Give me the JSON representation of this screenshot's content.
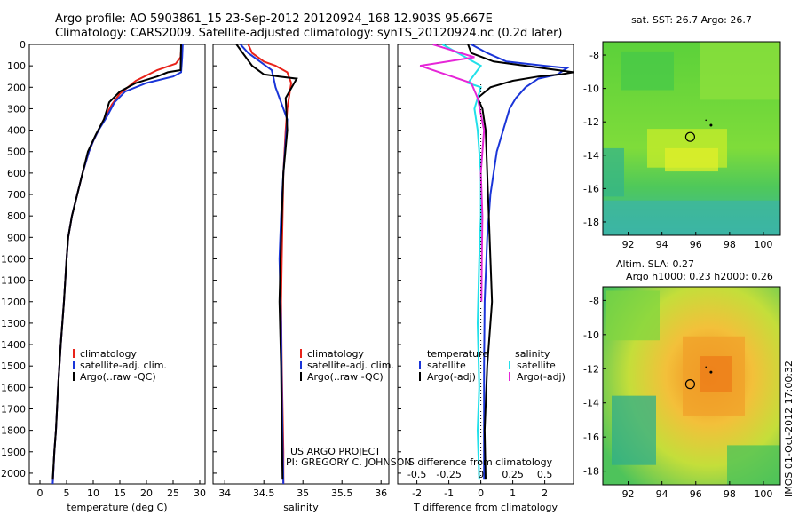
{
  "header": {
    "title_line1": "Argo profile: AO 5903861_15 23-Sep-2012 20120924_168 12.903S 95.667E",
    "title_line2": "Climatology: CARS2009. Satellite-adjusted climatology: synTS_20120924.nc (0.2d later)"
  },
  "credits": {
    "line1": "US ARGO PROJECT",
    "line2": "PI: GREGORY C. JOHNSON"
  },
  "stamp": "IMOS 01-Oct-2012 17:00:32",
  "colors": {
    "climatology": "#e8231a",
    "satellite": "#1a35d8",
    "argo": "#000000",
    "satellite_salinity": "#22e0ea",
    "argo_salinity": "#e626d8"
  },
  "chart_data": [
    {
      "type": "line",
      "name": "temperature-panel",
      "xlabel": "temperature (deg C)",
      "ylabel": "",
      "xlim": [
        -2,
        31
      ],
      "ylim": [
        0,
        2050
      ],
      "xticks": [
        "0",
        "5",
        "10",
        "15",
        "20",
        "25",
        "30"
      ],
      "yticks": [
        "0",
        "100",
        "200",
        "300",
        "400",
        "500",
        "600",
        "700",
        "800",
        "900",
        "1000",
        "1100",
        "1200",
        "1300",
        "1400",
        "1500",
        "1600",
        "1700",
        "1800",
        "1900",
        "2000"
      ],
      "legend": [
        "climatology",
        "satellite-adj. clim.",
        "Argo(..raw -QC)"
      ],
      "series": [
        {
          "name": "climatology",
          "x": [
            26.6,
            26.4,
            25.5,
            22,
            18,
            15,
            13.5,
            12,
            11,
            10,
            9.2,
            8,
            7,
            6,
            5.3,
            5,
            4.5,
            3.9,
            3.4,
            3,
            2.7,
            2.4
          ],
          "y": [
            0,
            60,
            90,
            120,
            170,
            230,
            280,
            350,
            400,
            450,
            500,
            600,
            700,
            800,
            900,
            1000,
            1200,
            1400,
            1600,
            1800,
            1900,
            2050
          ]
        },
        {
          "name": "satellite-adj. clim.",
          "x": [
            26.8,
            26.7,
            26.5,
            25,
            20,
            16,
            14,
            12.5,
            11,
            10,
            9.2,
            8,
            7,
            6,
            5.3,
            5,
            4.5,
            3.9,
            3.4,
            3,
            2.7,
            2.4
          ],
          "y": [
            0,
            60,
            130,
            150,
            180,
            220,
            270,
            340,
            400,
            450,
            500,
            600,
            700,
            800,
            900,
            1000,
            1200,
            1400,
            1600,
            1800,
            1900,
            2050
          ]
        },
        {
          "name": "Argo(..raw -QC)",
          "x": [
            26.5,
            26.4,
            24,
            22,
            18,
            15,
            13,
            12,
            10.5,
            9,
            8,
            7,
            6,
            5.3,
            5,
            4.5,
            3.9,
            3.4,
            3,
            2.7,
            2.4
          ],
          "y": [
            0,
            120,
            130,
            150,
            180,
            220,
            270,
            350,
            420,
            500,
            600,
            700,
            800,
            900,
            1000,
            1200,
            1400,
            1600,
            1800,
            1900,
            2030
          ]
        }
      ]
    },
    {
      "type": "line",
      "name": "salinity-panel",
      "xlabel": "salinity",
      "xlim": [
        33.85,
        36.1
      ],
      "ylim": [
        0,
        2050
      ],
      "xticks": [
        "34",
        "34.5",
        "35",
        "35.5",
        "36"
      ],
      "legend": [
        "climatology",
        "satellite-adj. clim.",
        "Argo(..raw -QC)"
      ],
      "series": [
        {
          "name": "climatology",
          "x": [
            34.3,
            34.35,
            34.5,
            34.65,
            34.8,
            34.85,
            34.8,
            34.78,
            34.75,
            34.74,
            34.73,
            34.72,
            34.73,
            34.74,
            34.75,
            34.75
          ],
          "y": [
            0,
            40,
            80,
            100,
            130,
            180,
            300,
            400,
            600,
            800,
            1000,
            1200,
            1500,
            1700,
            1900,
            2050
          ]
        },
        {
          "name": "satellite-adj. clim.",
          "x": [
            34.2,
            34.3,
            34.45,
            34.6,
            34.62,
            34.65,
            34.7,
            34.8,
            34.78,
            34.75,
            34.72,
            34.7,
            34.72,
            34.73,
            34.74,
            34.75
          ],
          "y": [
            0,
            40,
            80,
            120,
            150,
            200,
            250,
            350,
            450,
            600,
            800,
            1000,
            1300,
            1600,
            1850,
            2050
          ]
        },
        {
          "name": "Argo(..raw -QC)",
          "x": [
            34.15,
            34.25,
            34.35,
            34.5,
            34.7,
            34.92,
            34.78,
            34.8,
            34.75,
            34.72,
            34.7,
            34.72,
            34.73,
            34.74
          ],
          "y": [
            0,
            50,
            100,
            140,
            150,
            160,
            250,
            400,
            600,
            900,
            1200,
            1500,
            1800,
            2030
          ]
        }
      ]
    },
    {
      "type": "line",
      "name": "difference-panel",
      "xlabel": "T difference from climatology",
      "xlabel_top": "S difference from climatology",
      "xlim": [
        -2.6,
        2.9
      ],
      "ylim": [
        0,
        2050
      ],
      "xticks": [
        "-2",
        "-1",
        "0",
        "1",
        "2"
      ],
      "xticks_top": [
        "-0.5",
        "-0.25",
        "0",
        "0.25",
        "0.5"
      ],
      "legend_titles": [
        "temperature",
        "salinity"
      ],
      "legend": [
        "satellite",
        "Argo(-adj)",
        "satellite",
        "Argo(-adj)"
      ],
      "series": [
        {
          "name": "temperature satellite",
          "x": [
            -0.3,
            0.2,
            0.8,
            2.0,
            2.7,
            2.6,
            2.4,
            1.8,
            1.4,
            1.1,
            0.9,
            0.7,
            0.5,
            0.3,
            0.2,
            0.12,
            0.1,
            0.1,
            0.1
          ],
          "y": [
            0,
            40,
            80,
            100,
            110,
            120,
            140,
            160,
            200,
            250,
            300,
            400,
            500,
            700,
            900,
            1200,
            1500,
            1800,
            2030
          ]
        },
        {
          "name": "temperature Argo(-adj)",
          "x": [
            -0.4,
            -0.3,
            0.4,
            2.9,
            2.5,
            1.8,
            1.0,
            0.3,
            -0.1,
            0.05,
            0.15,
            0.2,
            0.25,
            0.3,
            0.35,
            0.2,
            0.12,
            0.15
          ],
          "y": [
            0,
            40,
            80,
            130,
            140,
            150,
            170,
            200,
            250,
            300,
            400,
            600,
            800,
            1000,
            1200,
            1500,
            1800,
            2030
          ]
        },
        {
          "name": "salinity satellite",
          "x": [
            -1.2,
            -0.6,
            0,
            -0.4,
            0,
            -0.2,
            -0.1,
            0,
            0,
            -0.05,
            -0.1,
            -0.05,
            -0.1,
            -0.05
          ],
          "y": [
            0,
            50,
            100,
            180,
            200,
            300,
            400,
            600,
            800,
            1000,
            1300,
            1600,
            1800,
            2030
          ]
        },
        {
          "name": "salinity Argo(-adj)",
          "x": [
            -1.5,
            -0.2,
            -1.9,
            -0.3,
            -0.1,
            0.1,
            0,
            0.05,
            0.03,
            0.02
          ],
          "y": [
            0,
            60,
            100,
            180,
            250,
            400,
            600,
            800,
            1000,
            1200
          ]
        }
      ]
    },
    {
      "type": "heatmap",
      "name": "sst-map",
      "title": "sat. SST: 26.7 Argo: 26.7",
      "xticks": [
        "92",
        "94",
        "96",
        "98",
        "100"
      ],
      "yticks": [
        "-8",
        "-10",
        "-12",
        "-14",
        "-16",
        "-18"
      ],
      "xlim": [
        90.5,
        101
      ],
      "ylim": [
        -18.8,
        -7.2
      ],
      "float_position": {
        "lon": 95.667,
        "lat": -12.903
      }
    },
    {
      "type": "heatmap",
      "name": "sla-map",
      "title_line1": "Altim. SLA: 0.27",
      "title_line2": "Argo h1000: 0.23 h2000: 0.26",
      "xticks": [
        "92",
        "94",
        "96",
        "98",
        "100"
      ],
      "yticks": [
        "-8",
        "-10",
        "-12",
        "-14",
        "-16",
        "-18"
      ],
      "xlim": [
        90.5,
        101
      ],
      "ylim": [
        -18.8,
        -7.2
      ],
      "float_position": {
        "lon": 95.667,
        "lat": -12.903
      }
    }
  ]
}
